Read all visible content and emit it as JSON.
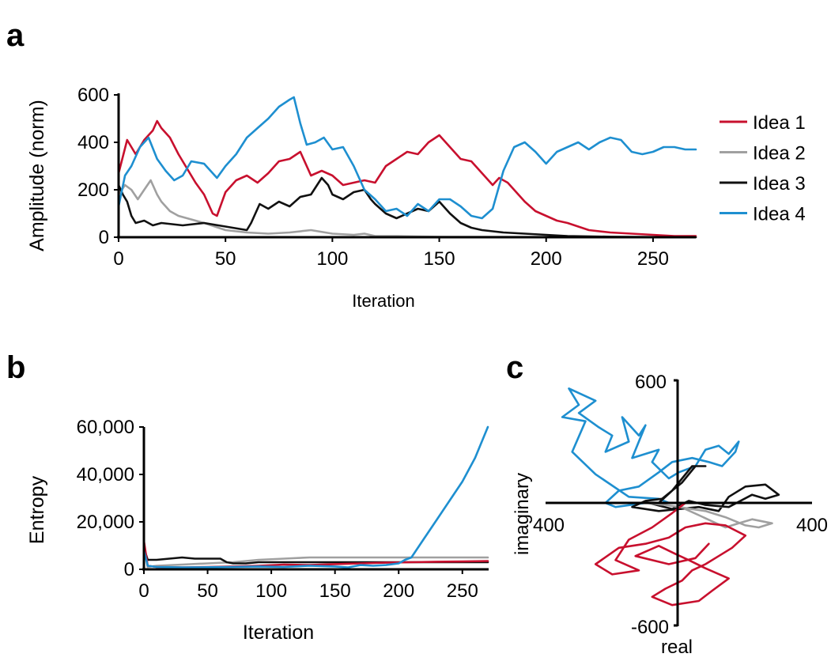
{
  "panels": {
    "a": "a",
    "b": "b",
    "c": "c"
  },
  "colors": {
    "idea1": "#c8102e",
    "idea2": "#a0a0a0",
    "idea3": "#111111",
    "idea4": "#1e8fd0"
  },
  "chart_data": [
    {
      "panel": "a",
      "type": "line",
      "xlabel": "Iteration",
      "ylabel": "Amplitude (norm)",
      "xlim": [
        0,
        270
      ],
      "ylim": [
        0,
        600
      ],
      "xticks": [
        0,
        50,
        100,
        150,
        200,
        250
      ],
      "yticks": [
        0,
        200,
        400,
        600
      ],
      "grid": false,
      "legend_position": "right",
      "series": [
        {
          "name": "Idea 1",
          "color": "#c8102e",
          "x": [
            0,
            4,
            8,
            12,
            16,
            18,
            20,
            24,
            28,
            32,
            36,
            40,
            44,
            46,
            50,
            55,
            60,
            65,
            70,
            75,
            80,
            85,
            90,
            95,
            100,
            105,
            110,
            115,
            120,
            125,
            130,
            135,
            140,
            145,
            150,
            155,
            160,
            165,
            170,
            175,
            178,
            182,
            186,
            190,
            195,
            200,
            205,
            210,
            220,
            230,
            240,
            250,
            260,
            270
          ],
          "y": [
            270,
            410,
            350,
            410,
            450,
            490,
            460,
            420,
            350,
            290,
            230,
            180,
            100,
            90,
            190,
            240,
            260,
            230,
            270,
            320,
            330,
            360,
            260,
            280,
            260,
            220,
            230,
            240,
            230,
            300,
            330,
            360,
            350,
            400,
            430,
            380,
            330,
            320,
            270,
            220,
            250,
            230,
            190,
            150,
            110,
            90,
            70,
            60,
            30,
            20,
            15,
            10,
            5,
            5
          ]
        },
        {
          "name": "Idea 2",
          "color": "#a0a0a0",
          "x": [
            0,
            3,
            6,
            9,
            12,
            15,
            18,
            20,
            24,
            28,
            32,
            36,
            40,
            45,
            50,
            55,
            60,
            70,
            80,
            90,
            100,
            110,
            115,
            120,
            130,
            140,
            150,
            200,
            270
          ],
          "y": [
            180,
            220,
            200,
            160,
            200,
            240,
            180,
            150,
            110,
            90,
            80,
            70,
            60,
            45,
            30,
            25,
            20,
            15,
            20,
            30,
            15,
            10,
            15,
            5,
            5,
            3,
            2,
            1,
            0
          ]
        },
        {
          "name": "Idea 3",
          "color": "#111111",
          "x": [
            0,
            2,
            4,
            6,
            8,
            12,
            16,
            20,
            30,
            40,
            50,
            60,
            62,
            66,
            70,
            75,
            80,
            85,
            90,
            95,
            98,
            100,
            105,
            110,
            115,
            118,
            120,
            125,
            130,
            135,
            140,
            145,
            150,
            155,
            160,
            165,
            170,
            175,
            180,
            190,
            200,
            210,
            230,
            270
          ],
          "y": [
            220,
            180,
            150,
            90,
            60,
            70,
            50,
            60,
            50,
            60,
            45,
            30,
            60,
            140,
            120,
            150,
            130,
            170,
            180,
            250,
            220,
            180,
            160,
            190,
            200,
            160,
            140,
            100,
            80,
            100,
            120,
            110,
            150,
            100,
            60,
            40,
            30,
            25,
            20,
            15,
            10,
            5,
            2,
            0
          ]
        },
        {
          "name": "Idea 4",
          "color": "#1e8fd0",
          "x": [
            0,
            3,
            6,
            10,
            14,
            18,
            22,
            26,
            30,
            34,
            40,
            46,
            50,
            55,
            60,
            65,
            70,
            75,
            80,
            82,
            85,
            88,
            92,
            96,
            100,
            105,
            110,
            115,
            120,
            125,
            130,
            135,
            140,
            145,
            150,
            155,
            160,
            165,
            170,
            175,
            180,
            185,
            190,
            195,
            200,
            205,
            210,
            215,
            220,
            225,
            230,
            235,
            240,
            245,
            250,
            255,
            260,
            265,
            270
          ],
          "y": [
            130,
            260,
            300,
            380,
            420,
            330,
            280,
            240,
            260,
            320,
            310,
            250,
            300,
            350,
            420,
            460,
            500,
            550,
            580,
            590,
            480,
            390,
            400,
            420,
            370,
            380,
            300,
            200,
            160,
            110,
            120,
            90,
            140,
            110,
            160,
            160,
            130,
            90,
            80,
            120,
            280,
            380,
            400,
            360,
            310,
            360,
            380,
            400,
            370,
            400,
            420,
            410,
            360,
            350,
            360,
            380,
            380,
            370,
            370
          ]
        }
      ]
    },
    {
      "panel": "b",
      "type": "line",
      "xlabel": "Iteration",
      "ylabel": "Entropy",
      "xlim": [
        0,
        270
      ],
      "ylim": [
        0,
        60000
      ],
      "xticks": [
        0,
        50,
        100,
        150,
        200,
        250
      ],
      "yticks": [
        0,
        20000,
        40000,
        60000
      ],
      "ytick_labels": [
        "0",
        "20,000",
        "40,000",
        "60,000"
      ],
      "grid": false,
      "series": [
        {
          "color": "#a0a0a0",
          "x": [
            0,
            3,
            10,
            30,
            50,
            70,
            90,
            110,
            130,
            150,
            170,
            190,
            210,
            230,
            250,
            270
          ],
          "y": [
            11000,
            1000,
            1500,
            2000,
            2500,
            3000,
            4000,
            4500,
            5000,
            5000,
            5000,
            5000,
            5000,
            5000,
            5000,
            5000
          ]
        },
        {
          "color": "#111111",
          "x": [
            0,
            3,
            10,
            20,
            30,
            40,
            50,
            60,
            65,
            70,
            80,
            90,
            100,
            120,
            140,
            160,
            180,
            200,
            220,
            240,
            260,
            270
          ],
          "y": [
            9000,
            4000,
            4000,
            4500,
            5000,
            4500,
            4500,
            4500,
            3000,
            2500,
            2500,
            3000,
            3000,
            3000,
            3000,
            3000,
            3000,
            3000,
            3000,
            3000,
            3000,
            3000
          ]
        },
        {
          "color": "#c8102e",
          "x": [
            0,
            3,
            10,
            30,
            50,
            70,
            90,
            110,
            130,
            150,
            170,
            190,
            210,
            230,
            250,
            270
          ],
          "y": [
            12000,
            1500,
            1000,
            800,
            1000,
            1200,
            1500,
            2000,
            1800,
            2200,
            2500,
            2800,
            3000,
            3200,
            3300,
            3500
          ]
        },
        {
          "color": "#1e8fd0",
          "x": [
            0,
            3,
            10,
            30,
            50,
            70,
            90,
            110,
            130,
            150,
            160,
            170,
            180,
            190,
            200,
            205,
            210,
            220,
            230,
            240,
            250,
            260,
            270
          ],
          "y": [
            8000,
            1500,
            1000,
            800,
            900,
            1000,
            1200,
            1000,
            1500,
            1200,
            800,
            1800,
            1500,
            1800,
            2500,
            4000,
            5000,
            13000,
            21000,
            29000,
            37000,
            47000,
            60000
          ]
        }
      ]
    },
    {
      "panel": "c",
      "type": "line",
      "xlabel": "real",
      "ylabel": "imaginary",
      "xlim": [
        -400,
        400
      ],
      "ylim": [
        -600,
        600
      ],
      "xtick_labels": [
        "400",
        "400"
      ],
      "ytick_labels": [
        "600",
        "-600"
      ],
      "grid": false,
      "series": [
        {
          "color": "#1e8fd0",
          "x": [
            -30,
            -60,
            -150,
            -250,
            -320,
            -280,
            -350,
            -300,
            -330,
            -250,
            -300,
            -240,
            -200,
            -220,
            -150,
            -170,
            -120,
            -100,
            -140,
            -60,
            -80,
            -30,
            0,
            50,
            80,
            120,
            150,
            180,
            170,
            130,
            90,
            40,
            -20,
            -60,
            -120,
            -180,
            -220,
            -190,
            -100
          ],
          "x_note": "",
          "y": [
            0,
            20,
            30,
            140,
            250,
            400,
            420,
            480,
            560,
            500,
            440,
            370,
            330,
            250,
            300,
            420,
            330,
            380,
            220,
            260,
            200,
            120,
            150,
            180,
            260,
            280,
            240,
            300,
            250,
            180,
            200,
            220,
            200,
            150,
            80,
            60,
            0,
            -20,
            0
          ]
        },
        {
          "color": "#111111",
          "x": [
            -60,
            -20,
            40,
            80,
            50,
            10,
            -50,
            -100,
            -140,
            -60,
            0,
            60,
            120,
            150,
            200,
            260,
            300,
            260,
            220,
            150,
            80,
            30,
            -20,
            -90
          ],
          "y": [
            0,
            60,
            180,
            180,
            180,
            100,
            20,
            10,
            -20,
            -40,
            -30,
            -20,
            -40,
            30,
            80,
            90,
            40,
            20,
            40,
            -20,
            -10,
            10,
            -30,
            0
          ]
        },
        {
          "color": "#a0a0a0",
          "x": [
            -100,
            -40,
            0,
            40,
            80,
            140,
            200,
            240,
            280,
            220,
            180,
            140,
            100,
            60,
            20
          ],
          "y": [
            0,
            -10,
            -20,
            -30,
            -40,
            -70,
            -110,
            -120,
            -100,
            -80,
            -100,
            -120,
            -90,
            -60,
            -30
          ]
        },
        {
          "color": "#c8102e",
          "x": [
            20,
            -20,
            -80,
            -150,
            -190,
            -120,
            -200,
            -250,
            -180,
            -100,
            -30,
            20,
            80,
            140,
            200,
            160,
            120,
            80,
            40,
            10,
            -40,
            -80,
            -20,
            60,
            100,
            150,
            80,
            30,
            -10,
            -60,
            -130,
            -30,
            50,
            90
          ],
          "y": [
            0,
            -50,
            -120,
            -180,
            -280,
            -330,
            -350,
            -300,
            -220,
            -200,
            -170,
            -120,
            -100,
            -110,
            -160,
            -220,
            -260,
            -300,
            -330,
            -380,
            -420,
            -460,
            -500,
            -480,
            -430,
            -370,
            -320,
            -280,
            -250,
            -210,
            -260,
            -300,
            -270,
            -200
          ]
        }
      ]
    }
  ]
}
